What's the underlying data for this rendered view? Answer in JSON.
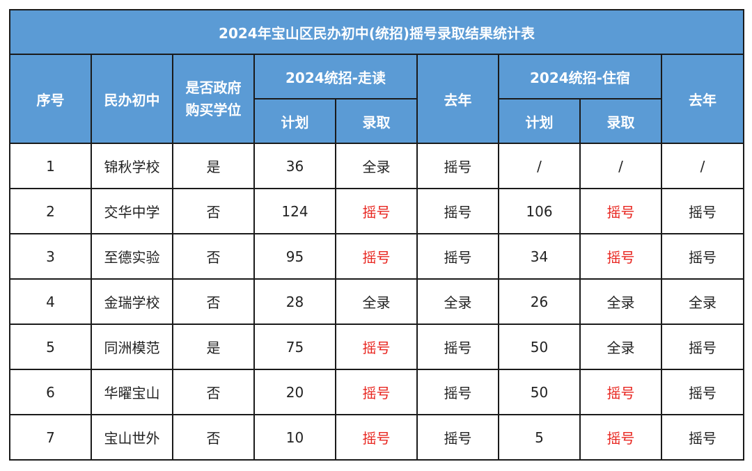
{
  "title": "2024年宝山区民办初中(统招)摇号录取结果统计表",
  "headers": {
    "seq": "序号",
    "school": "民办初中",
    "gov_line1": "是否政府",
    "gov_line2": "购买学位",
    "group_walk": "2024统招-走读",
    "last_year_walk": "去年",
    "group_board": "2024统招-住宿",
    "last_year_board": "去年",
    "plan_walk": "计划",
    "admit_walk": "录取",
    "plan_board": "计划",
    "admit_board": "录取"
  },
  "colors": {
    "header_bg": "#5b9bd5",
    "header_text": "#ffffff",
    "lottery_red": "#e8251f",
    "border": "#1a1a1a"
  },
  "rows": [
    {
      "seq": "1",
      "school": "锦秋学校",
      "gov": "是",
      "plan_walk": "36",
      "admit_walk": "全录",
      "last_walk": "摇号",
      "plan_board": "/",
      "admit_board": "/",
      "last_board": "/"
    },
    {
      "seq": "2",
      "school": "交华中学",
      "gov": "否",
      "plan_walk": "124",
      "admit_walk": "摇号",
      "last_walk": "摇号",
      "plan_board": "106",
      "admit_board": "摇号",
      "last_board": "摇号"
    },
    {
      "seq": "3",
      "school": "至德实验",
      "gov": "否",
      "plan_walk": "95",
      "admit_walk": "摇号",
      "last_walk": "摇号",
      "plan_board": "34",
      "admit_board": "摇号",
      "last_board": "摇号"
    },
    {
      "seq": "4",
      "school": "金瑞学校",
      "gov": "否",
      "plan_walk": "28",
      "admit_walk": "全录",
      "last_walk": "全录",
      "plan_board": "26",
      "admit_board": "全录",
      "last_board": "全录"
    },
    {
      "seq": "5",
      "school": "同洲模范",
      "gov": "是",
      "plan_walk": "75",
      "admit_walk": "摇号",
      "last_walk": "摇号",
      "plan_board": "50",
      "admit_board": "全录",
      "last_board": "摇号"
    },
    {
      "seq": "6",
      "school": "华曜宝山",
      "gov": "否",
      "plan_walk": "20",
      "admit_walk": "摇号",
      "last_walk": "摇号",
      "plan_board": "50",
      "admit_board": "摇号",
      "last_board": "摇号"
    },
    {
      "seq": "7",
      "school": "宝山世外",
      "gov": "否",
      "plan_walk": "10",
      "admit_walk": "摇号",
      "last_walk": "摇号",
      "plan_board": "5",
      "admit_board": "摇号",
      "last_board": "摇号"
    }
  ]
}
